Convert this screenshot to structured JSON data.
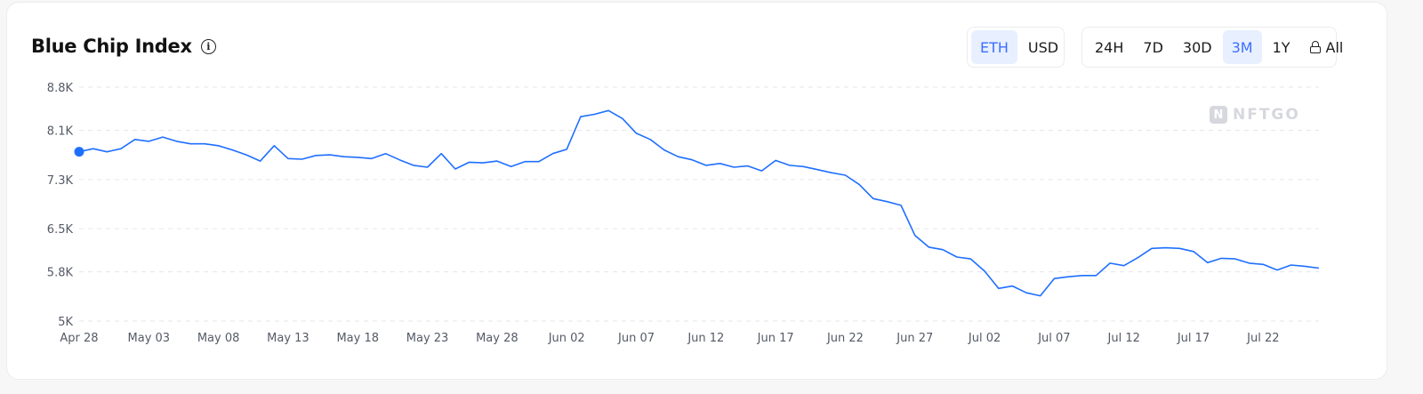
{
  "header": {
    "title": "Blue Chip Index",
    "info_icon": "info-icon"
  },
  "currency_toggle": [
    {
      "label": "ETH",
      "active": true
    },
    {
      "label": "USD",
      "active": false
    }
  ],
  "range_toggle": [
    {
      "label": "24H",
      "active": false
    },
    {
      "label": "7D",
      "active": false
    },
    {
      "label": "30D",
      "active": false
    },
    {
      "label": "3M",
      "active": true
    },
    {
      "label": "1Y",
      "active": false
    },
    {
      "label": "All",
      "active": false,
      "icon": "lock-icon"
    }
  ],
  "watermark": {
    "text": "NFTGO",
    "logo_icon": "nftgo-logo-icon"
  },
  "colors": {
    "accent": "#3d6fff",
    "line": "#1f6fff",
    "grid": "#e6e6ea"
  },
  "chart_data": {
    "type": "line",
    "title": "Blue Chip Index",
    "xlabel": "",
    "ylabel": "",
    "ylim": [
      5000,
      8800
    ],
    "yticks": [
      5000,
      5800,
      6500,
      7300,
      8100,
      8800
    ],
    "ytick_labels": [
      "5K",
      "5.8K",
      "6.5K",
      "7.3K",
      "8.1K",
      "8.8K"
    ],
    "xticks": [
      "Apr 28",
      "May 03",
      "May 08",
      "May 13",
      "May 18",
      "May 23",
      "May 28",
      "Jun 02",
      "Jun 07",
      "Jun 12",
      "Jun 17",
      "Jun 22",
      "Jun 27",
      "Jul 02",
      "Jul 07",
      "Jul 12",
      "Jul 17",
      "Jul 22"
    ],
    "grid": true,
    "start_marker": true,
    "series": [
      {
        "values": [
          7750,
          7800,
          7750,
          7800,
          7950,
          7920,
          7990,
          7920,
          7880,
          7880,
          7850,
          7780,
          7700,
          7600,
          7850,
          7640,
          7630,
          7690,
          7700,
          7670,
          7660,
          7640,
          7720,
          7620,
          7530,
          7500,
          7720,
          7470,
          7580,
          7570,
          7600,
          7510,
          7590,
          7590,
          7720,
          7790,
          8320,
          8360,
          8420,
          8290,
          8050,
          7950,
          7780,
          7670,
          7620,
          7530,
          7560,
          7500,
          7520,
          7440,
          7610,
          7530,
          7510,
          7460,
          7410,
          7370,
          7220,
          6990,
          6940,
          6880,
          6390,
          6200,
          6160,
          6040,
          6010,
          5810,
          5530,
          5570,
          5460,
          5410,
          5690,
          5720,
          5740,
          5740,
          5940,
          5900,
          6030,
          6180,
          6190,
          6180,
          6130,
          5950,
          6020,
          6010,
          5940,
          5920,
          5830,
          5910,
          5890,
          5860
        ]
      }
    ]
  }
}
